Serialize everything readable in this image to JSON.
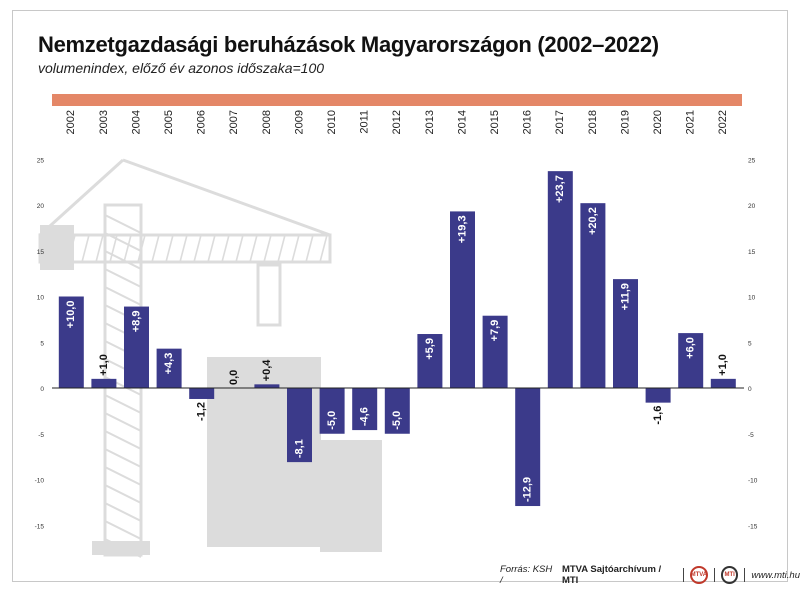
{
  "header": {
    "title": "Nemzetgazdasági beruházások Magyarországon (2002–2022)",
    "subtitle": "volumenindex, előző év azonos időszaka=100"
  },
  "footer": {
    "source_prefix": "Forrás: KSH /",
    "source_main": "MTVA Sajtóarchívum / MTI",
    "website": "www.mti.hu"
  },
  "colors": {
    "bar": "#3b3a8a",
    "year_band": "#e48767",
    "illustration": "#dcdcdc",
    "axis": "#222222"
  },
  "chart_data": {
    "type": "bar",
    "categories": [
      "2002",
      "2003",
      "2004",
      "2005",
      "2006",
      "2007",
      "2008",
      "2009",
      "2010",
      "2011",
      "2012",
      "2013",
      "2014",
      "2015",
      "2016",
      "2017",
      "2018",
      "2019",
      "2020",
      "2021",
      "2022"
    ],
    "values": [
      10.0,
      1.0,
      8.9,
      4.3,
      -1.2,
      0.0,
      0.4,
      -8.1,
      -5.0,
      -4.6,
      -5.0,
      5.9,
      19.3,
      7.9,
      -12.9,
      23.7,
      20.2,
      11.9,
      -1.6,
      6.0,
      1.0
    ],
    "labels": [
      "+10,0",
      "+1,0",
      "+8,9",
      "+4,3",
      "-1,2",
      "0,0",
      "+0,4",
      "-8,1",
      "-5,0",
      "-4,6",
      "-5,0",
      "+5,9",
      "+19,3",
      "+7,9",
      "-12,9",
      "+23,7",
      "+20,2",
      "+11,9",
      "-1,6",
      "+6,0",
      "+1,0"
    ],
    "yticks": [
      25,
      20,
      15,
      10,
      5,
      0,
      -5,
      -10,
      -15
    ],
    "ytick_labels": [
      "25",
      "20",
      "15",
      "10",
      "5",
      "0",
      "-5",
      "-10",
      "-15"
    ],
    "ylim": [
      -15,
      25
    ],
    "grid": false,
    "legend": "none"
  }
}
